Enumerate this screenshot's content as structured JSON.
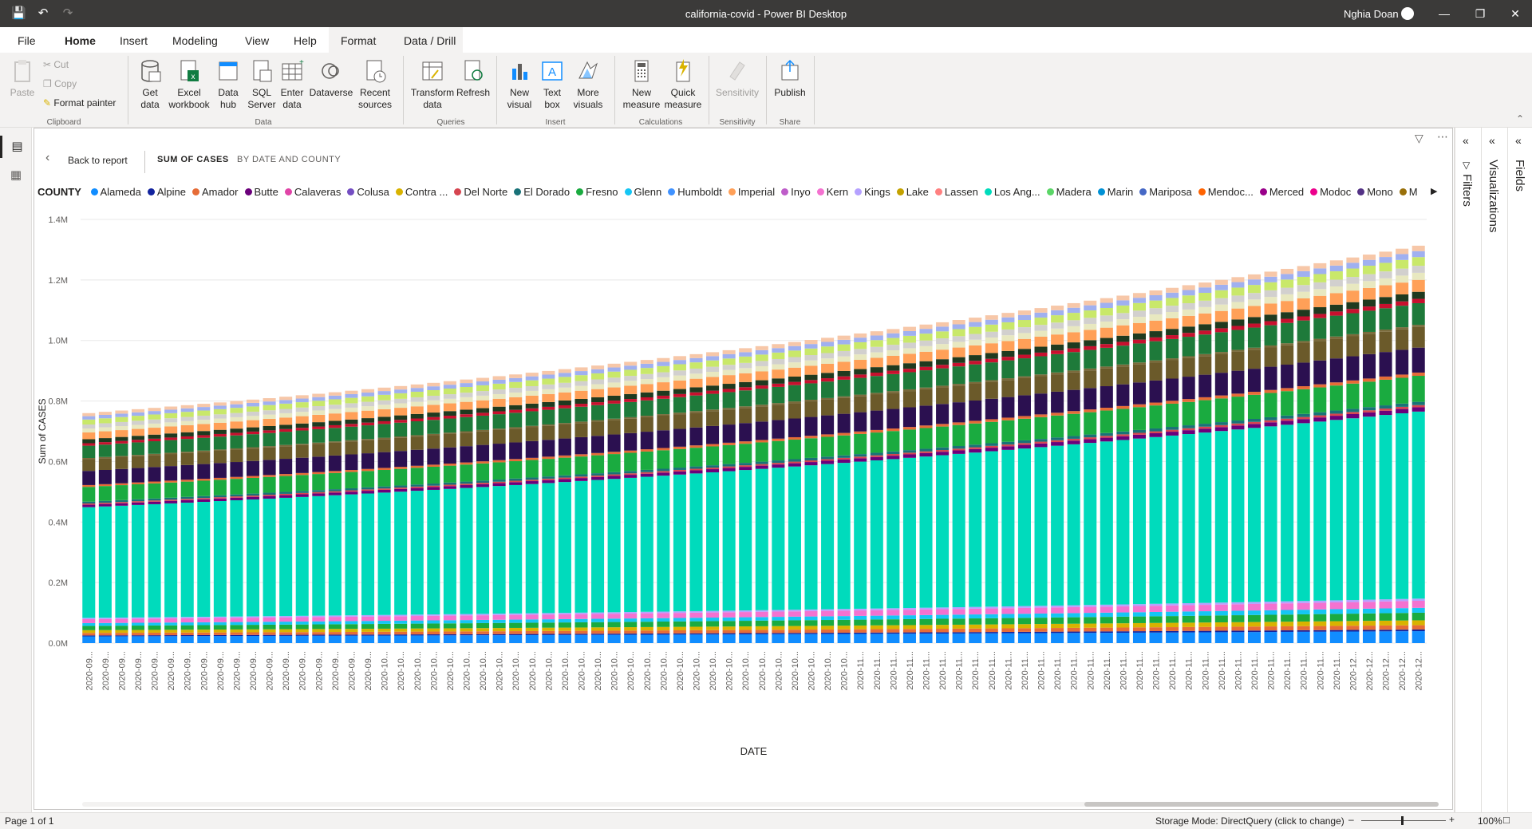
{
  "titlebar": {
    "title": "california-covid - Power BI Desktop",
    "user": "Nghia Doan"
  },
  "menu": {
    "tabs": [
      "File",
      "Home",
      "Insert",
      "Modeling",
      "View",
      "Help",
      "Format",
      "Data / Drill"
    ],
    "active": "Home"
  },
  "ribbon": {
    "clipboard": {
      "paste": "Paste",
      "cut": "Cut",
      "copy": "Copy",
      "format_painter": "Format painter",
      "label": "Clipboard"
    },
    "data": {
      "get_data": "Get data",
      "excel": "Excel workbook",
      "hub": "Data hub",
      "sql": "SQL Server",
      "enter": "Enter data",
      "dataverse": "Dataverse",
      "recent": "Recent sources",
      "label": "Data"
    },
    "queries": {
      "transform": "Transform data",
      "refresh": "Refresh",
      "label": "Queries"
    },
    "insert": {
      "new_visual": "New visual",
      "text_box": "Text box",
      "more_visuals": "More visuals",
      "label": "Insert"
    },
    "calculations": {
      "new_measure": "New measure",
      "quick_measure": "Quick measure",
      "label": "Calculations"
    },
    "sensitivity": {
      "sensitivity": "Sensitivity",
      "label": "Sensitivity"
    },
    "share": {
      "publish": "Publish",
      "label": "Share"
    }
  },
  "visual_header": {
    "back": "Back to report",
    "title1": "SUM OF CASES",
    "title2": "BY DATE AND COUNTY"
  },
  "panes": {
    "filters": "Filters",
    "visualizations": "Visualizations",
    "fields": "Fields"
  },
  "statusbar": {
    "page": "Page 1 of 1",
    "storage": "Storage Mode: DirectQuery (click to change)",
    "zoom": "100%"
  },
  "chart_data": {
    "type": "bar",
    "stacked": true,
    "ylabel": "Sum of CASES",
    "xlabel": "DATE",
    "ylim": [
      0,
      1400000
    ],
    "yticks": [
      "0.0M",
      "0.2M",
      "0.4M",
      "0.6M",
      "0.8M",
      "1.0M",
      "1.2M",
      "1.4M"
    ],
    "legend_title": "COUNTY",
    "legend": [
      "Alameda",
      "Alpine",
      "Amador",
      "Butte",
      "Calaveras",
      "Colusa",
      "Contra ...",
      "Del Norte",
      "El Dorado",
      "Fresno",
      "Glenn",
      "Humboldt",
      "Imperial",
      "Inyo",
      "Kern",
      "Kings",
      "Lake",
      "Lassen",
      "Los Ang...",
      "Madera",
      "Marin",
      "Mariposa",
      "Mendoc...",
      "Merced",
      "Modoc",
      "Mono",
      "Monterey"
    ],
    "legend_colors": [
      "#118dff",
      "#12239e",
      "#e66c37",
      "#6b007b",
      "#e044a7",
      "#744ec2",
      "#d9b300",
      "#d64550",
      "#197278",
      "#1aab40",
      "#15c6f4",
      "#4092ff",
      "#ffa058",
      "#be5dc9",
      "#f472d0",
      "#b5a1ff",
      "#c4a200",
      "#ff8080",
      "#00dbbc",
      "#5bd667",
      "#0091d5",
      "#4668c5",
      "#ff6300",
      "#99008a",
      "#ec008c",
      "#533285",
      "#99700a"
    ],
    "x_tick_labels": [
      "2020-09...",
      "2020-09...",
      "2020-09...",
      "2020-09...",
      "2020-09...",
      "2020-09...",
      "2020-09...",
      "2020-09...",
      "2020-09...",
      "2020-09...",
      "2020-09...",
      "2020-09...",
      "2020-09...",
      "2020-09...",
      "2020-09...",
      "2020-09...",
      "2020-09...",
      "2020-09...",
      "2020-10...",
      "2020-10...",
      "2020-10...",
      "2020-10...",
      "2020-10...",
      "2020-10...",
      "2020-10...",
      "2020-10...",
      "2020-10...",
      "2020-10...",
      "2020-10...",
      "2020-10...",
      "2020-10...",
      "2020-10...",
      "2020-10...",
      "2020-10...",
      "2020-10...",
      "2020-10...",
      "2020-10...",
      "2020-10...",
      "2020-10...",
      "2020-10...",
      "2020-10...",
      "2020-10...",
      "2020-10...",
      "2020-10...",
      "2020-10...",
      "2020-10...",
      "2020-10...",
      "2020-11...",
      "2020-11...",
      "2020-11...",
      "2020-11...",
      "2020-11...",
      "2020-11...",
      "2020-11...",
      "2020-11...",
      "2020-11...",
      "2020-11...",
      "2020-11...",
      "2020-11...",
      "2020-11...",
      "2020-11...",
      "2020-11...",
      "2020-11...",
      "2020-11...",
      "2020-11...",
      "2020-11...",
      "2020-11...",
      "2020-11...",
      "2020-11...",
      "2020-11...",
      "2020-11...",
      "2020-11...",
      "2020-11...",
      "2020-11...",
      "2020-11...",
      "2020-11...",
      "2020-11...",
      "2020-12...",
      "2020-12...",
      "2020-12...",
      "2020-12...",
      "2020-12..."
    ],
    "totals_start": 760000,
    "totals_end": 1340000,
    "segment_colors": [
      "#118dff",
      "#12239e",
      "#e66c37",
      "#d9b300",
      "#1aab40",
      "#15c6f4",
      "#f472d0",
      "#b5a1ff",
      "#00dbbc",
      "#6b007b",
      "#d64550",
      "#197278",
      "#1aab40",
      "#e66c37",
      "#2b1050",
      "#6b5a2a",
      "#7a6a3a",
      "#1e7a3a",
      "#c8102e",
      "#1f3a1f",
      "#ffa058",
      "#e8e8c0",
      "#d2d0ce",
      "#c9e86a",
      "#a0b0f0",
      "#f7c7a8"
    ],
    "segment_shares": [
      0.022,
      0.003,
      0.008,
      0.009,
      0.014,
      0.009,
      0.013,
      0.004,
      0.36,
      0.008,
      0.004,
      0.006,
      0.048,
      0.006,
      0.046,
      0.038,
      0.004,
      0.04,
      0.008,
      0.013,
      0.022,
      0.013,
      0.013,
      0.016,
      0.011,
      0.01
    ],
    "los_angeles_share_end": 0.345
  }
}
